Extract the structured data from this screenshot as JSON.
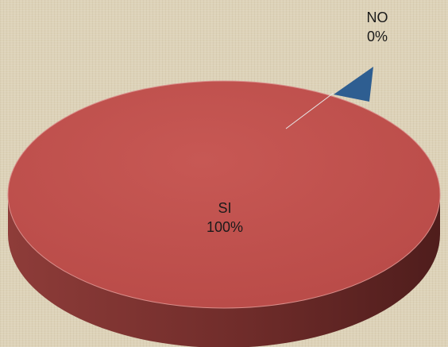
{
  "chart_data": {
    "type": "pie",
    "style": "3d",
    "slices": [
      {
        "label": "SI",
        "value": 100,
        "value_label": "100%",
        "color": "#c0504d"
      },
      {
        "label": "NO",
        "value": 0,
        "value_label": "0%",
        "color": "#2e5e91"
      }
    ],
    "legend": "none",
    "background": "#ddd2b8"
  }
}
